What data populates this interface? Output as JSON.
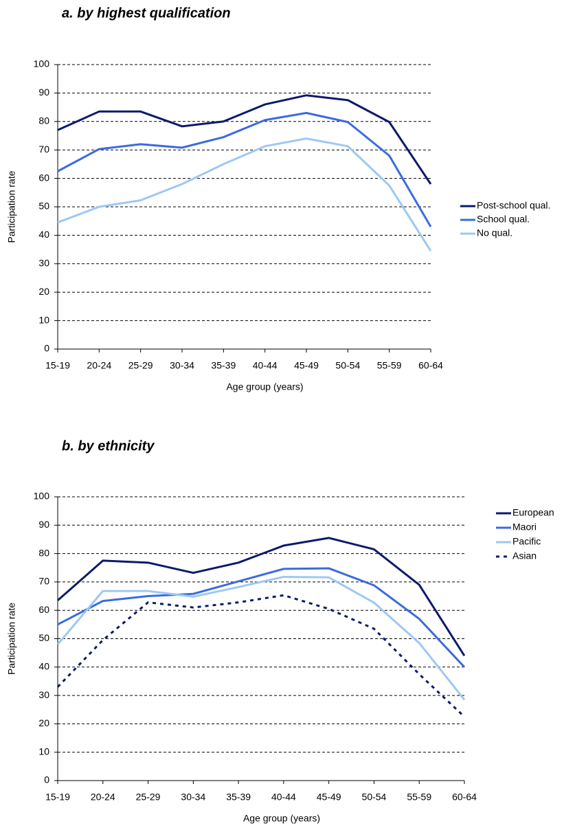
{
  "chart_data": [
    {
      "type": "line",
      "title": "a. by highest qualification",
      "x_label": "Age group (years)",
      "y_label": "Participation rate",
      "categories": [
        "15-19",
        "20-24",
        "25-29",
        "30-34",
        "35-39",
        "40-44",
        "45-49",
        "50-54",
        "55-59",
        "60-64"
      ],
      "ylim": [
        0,
        100
      ],
      "yticks": [
        0,
        10,
        20,
        30,
        40,
        50,
        60,
        70,
        80,
        90,
        100
      ],
      "grid": true,
      "legend": "right",
      "series": [
        {
          "name": "Post-school qual.",
          "color": "#0b1a6b",
          "values": [
            77,
            83.5,
            83.5,
            78.3,
            80,
            86,
            89.2,
            87.5,
            79.8,
            58
          ]
        },
        {
          "name": "School qual.",
          "color": "#3b6ae0",
          "values": [
            62.5,
            70.3,
            72,
            70.8,
            74.5,
            80.5,
            83,
            79.8,
            68,
            43
          ]
        },
        {
          "name": "No qual.",
          "color": "#9cc8f5",
          "values": [
            44.5,
            50,
            52.3,
            58,
            65,
            71.3,
            74,
            71.3,
            57.5,
            34.5
          ]
        }
      ]
    },
    {
      "type": "line",
      "title": "b. by ethnicity",
      "x_label": "Age group (years)",
      "y_label": "Participation rate",
      "categories": [
        "15-19",
        "20-24",
        "25-29",
        "30-34",
        "35-39",
        "40-44",
        "45-49",
        "50-54",
        "55-59",
        "60-64"
      ],
      "ylim": [
        0,
        100
      ],
      "yticks": [
        0,
        10,
        20,
        30,
        40,
        50,
        60,
        70,
        80,
        90,
        100
      ],
      "grid": true,
      "legend": "right",
      "series": [
        {
          "name": "European",
          "color": "#0b1a6b",
          "values": [
            63.5,
            77.5,
            76.8,
            73.2,
            76.8,
            82.8,
            85.5,
            81.5,
            69,
            44
          ]
        },
        {
          "name": "Maori",
          "color": "#3b6ae0",
          "values": [
            55,
            63.3,
            65,
            65.8,
            70.2,
            74.6,
            74.8,
            68.8,
            57,
            40
          ]
        },
        {
          "name": "Pacific",
          "color": "#9cc8f5",
          "values": [
            48,
            66.8,
            66.8,
            64.8,
            68.2,
            71.8,
            71.6,
            62.7,
            48.5,
            28.5
          ]
        },
        {
          "name": "Asian",
          "color": "#0b1a6b",
          "line_style": "dashed",
          "values": [
            33,
            49.5,
            62.8,
            61,
            62.8,
            65.3,
            60.5,
            53.5,
            37.5,
            22.5
          ]
        }
      ]
    }
  ]
}
